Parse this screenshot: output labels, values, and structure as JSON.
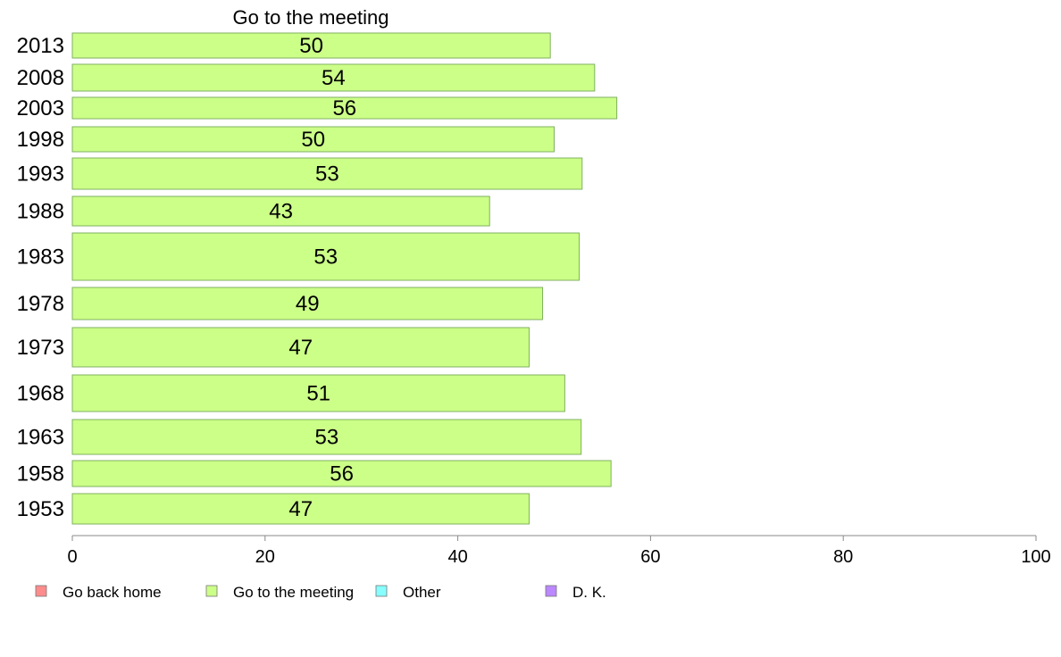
{
  "chart_data": {
    "type": "bar",
    "orientation": "horizontal",
    "title": "Go to the meeting",
    "categories": [
      "2013",
      "2008",
      "2003",
      "1998",
      "1993",
      "1988",
      "1983",
      "1978",
      "1973",
      "1968",
      "1963",
      "1958",
      "1953"
    ],
    "series": [
      {
        "name": "Go to the meeting",
        "color": "#ccff88",
        "values": [
          49.6,
          54.2,
          56.5,
          50.0,
          52.9,
          43.3,
          52.6,
          48.8,
          47.4,
          51.1,
          52.8,
          55.9,
          47.4
        ],
        "labels": [
          "50",
          "54",
          "56",
          "50",
          "53",
          "43",
          "53",
          "49",
          "47",
          "51",
          "53",
          "56",
          "47"
        ]
      }
    ],
    "xlim": [
      0,
      100
    ],
    "xticks": [
      "0",
      "20",
      "40",
      "60",
      "80",
      "100"
    ],
    "grid": false,
    "legend": {
      "placement": "bottom-left",
      "items": [
        {
          "label": "Go back home",
          "color": "#ff8c8c"
        },
        {
          "label": "Go to the meeting",
          "color": "#ccff88"
        },
        {
          "label": "Other",
          "color": "#88ffff"
        },
        {
          "label": "D. K.",
          "color": "#bb88ff"
        }
      ]
    }
  }
}
